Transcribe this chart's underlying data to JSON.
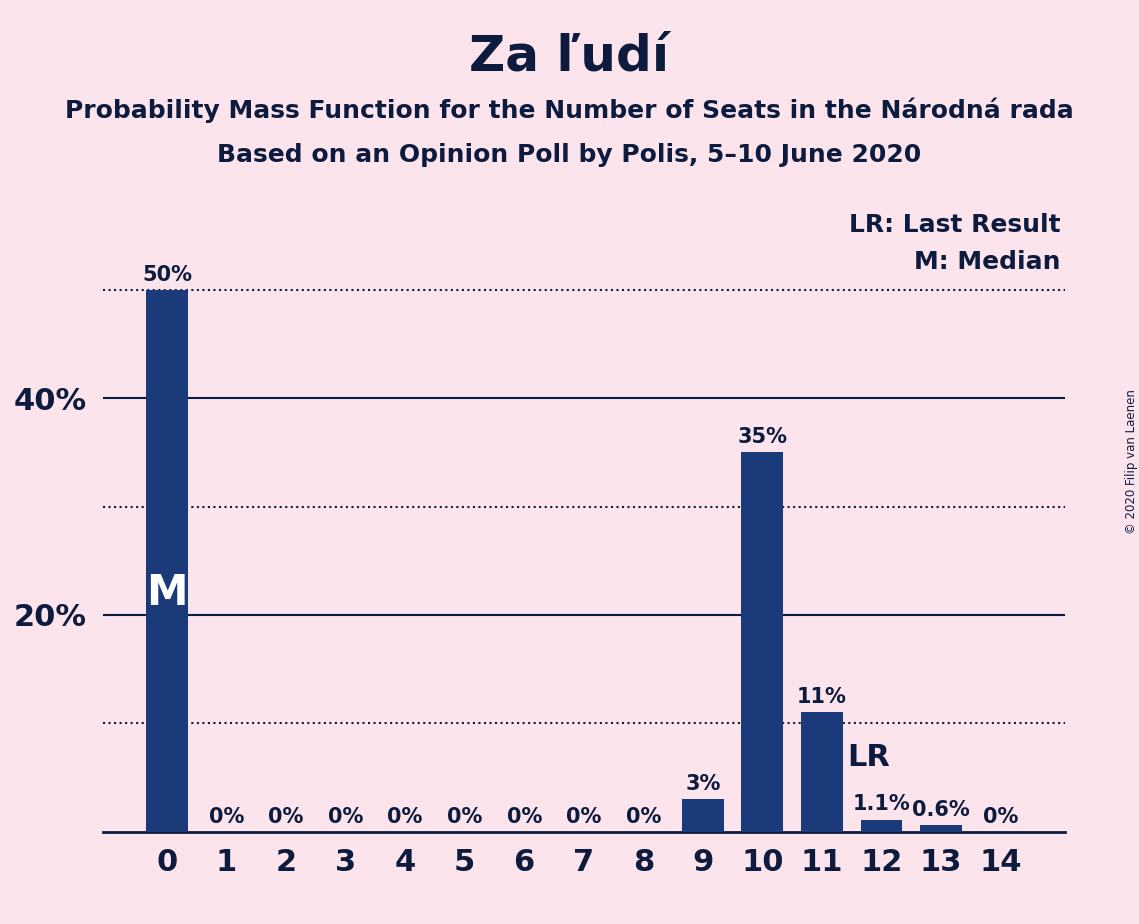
{
  "title": "Za ľudí",
  "subtitle1": "Probability Mass Function for the Number of Seats in the Národná rada",
  "subtitle2": "Based on an Opinion Poll by Polis, 5–10 June 2020",
  "copyright": "© 2020 Filip van Laenen",
  "categories": [
    0,
    1,
    2,
    3,
    4,
    5,
    6,
    7,
    8,
    9,
    10,
    11,
    12,
    13,
    14
  ],
  "values": [
    0.5,
    0.0,
    0.0,
    0.0,
    0.0,
    0.0,
    0.0,
    0.0,
    0.0,
    0.03,
    0.35,
    0.11,
    0.011,
    0.006,
    0.0
  ],
  "bar_labels": [
    "50%",
    "0%",
    "0%",
    "0%",
    "0%",
    "0%",
    "0%",
    "0%",
    "0%",
    "3%",
    "35%",
    "11%",
    "1.1%",
    "0.6%",
    "0%"
  ],
  "bar_color": "#1a3a7a",
  "background_color": "#fce4ec",
  "text_color": "#0d1b3e",
  "lr_value": 0.1,
  "median_value": 0.5,
  "lr_label": "LR: Last Result",
  "median_label": "M: Median",
  "ylabel_ticks": [
    0.2,
    0.4
  ],
  "ylabel_labels": [
    "20%",
    "40%"
  ],
  "dotted_lines": [
    0.1,
    0.3,
    0.5
  ],
  "solid_lines": [
    0.2,
    0.4
  ],
  "ylim": [
    0,
    0.58
  ],
  "title_fontsize": 36,
  "subtitle_fontsize": 18,
  "label_fontsize": 15,
  "tick_fontsize": 22
}
